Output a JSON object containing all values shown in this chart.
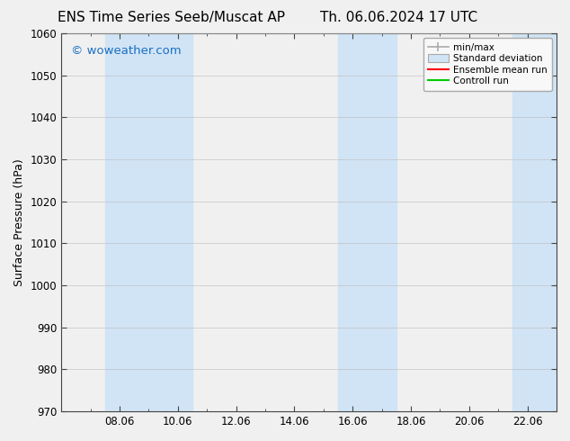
{
  "title_left": "ENS Time Series Seeb/Muscat AP",
  "title_right": "Th. 06.06.2024 17 UTC",
  "ylabel": "Surface Pressure (hPa)",
  "ylim": [
    970,
    1060
  ],
  "yticks": [
    970,
    980,
    990,
    1000,
    1010,
    1020,
    1030,
    1040,
    1050,
    1060
  ],
  "xtick_labels": [
    "08.06",
    "10.06",
    "12.06",
    "14.06",
    "16.06",
    "18.06",
    "20.06",
    "22.06"
  ],
  "xtick_positions": [
    2,
    4,
    6,
    8,
    10,
    12,
    14,
    16
  ],
  "xlim": [
    0,
    17.0
  ],
  "background_color": "#f0f0f0",
  "plot_bg_color": "#f0f0f0",
  "shaded_bands": [
    {
      "x_start": 1.5,
      "x_end": 4.5,
      "color": "#d0e4f5",
      "alpha": 1.0
    },
    {
      "x_start": 9.5,
      "x_end": 11.5,
      "color": "#d0e4f5",
      "alpha": 1.0
    },
    {
      "x_start": 15.5,
      "x_end": 17.0,
      "color": "#d0e4f5",
      "alpha": 1.0
    }
  ],
  "watermark_text": "© woweather.com",
  "watermark_color": "#1a6fc4",
  "legend_labels": [
    "min/max",
    "Standard deviation",
    "Ensemble mean run",
    "Controll run"
  ],
  "title_fontsize": 11,
  "axis_fontsize": 9,
  "tick_fontsize": 8.5,
  "grid_color": "#bbbbbb",
  "spine_color": "#444444",
  "minor_xtick_positions": [
    1,
    2,
    3,
    4,
    5,
    6,
    7,
    8,
    9,
    10,
    11,
    12,
    13,
    14,
    15,
    16,
    17
  ]
}
